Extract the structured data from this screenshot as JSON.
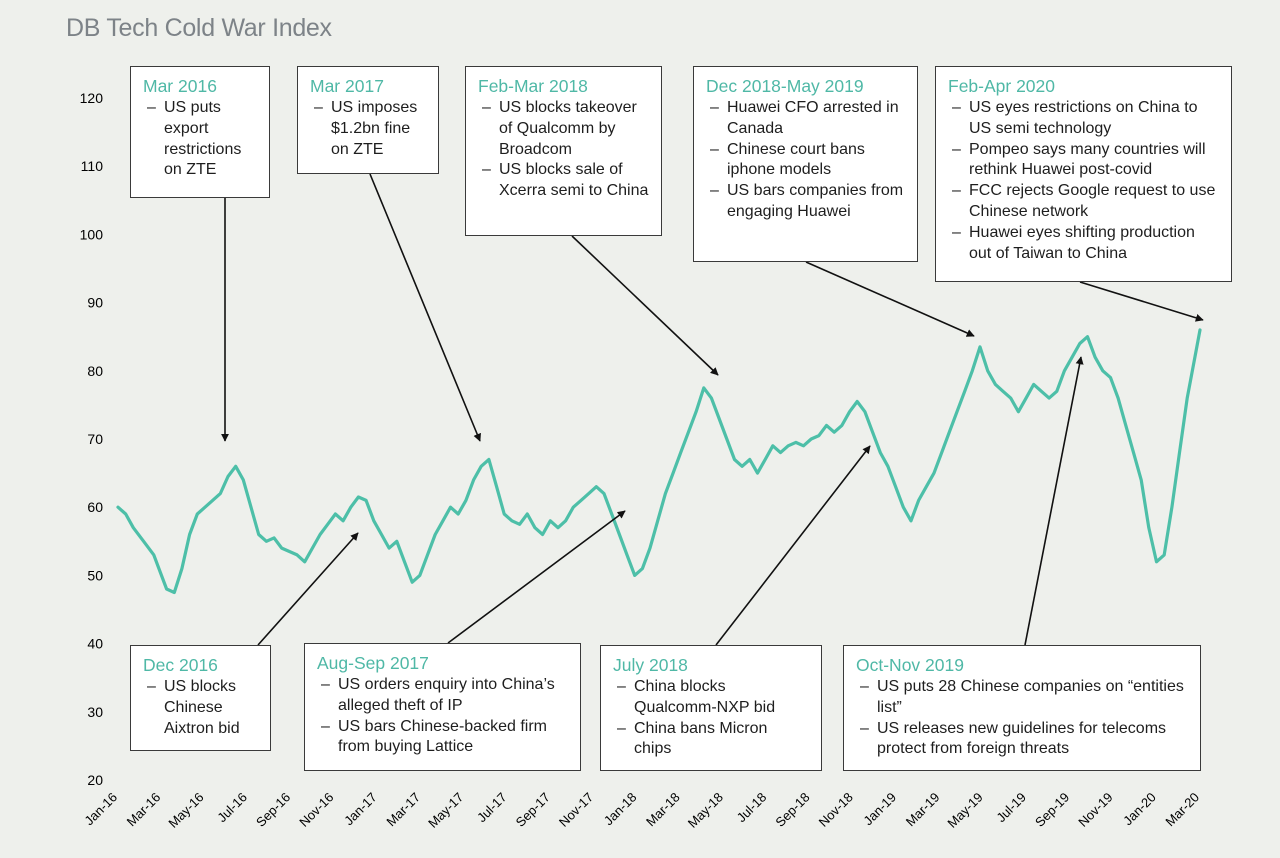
{
  "title": "DB Tech Cold War Index",
  "colors": {
    "line": "#4dbfa8",
    "accent": "#4fb8a6",
    "text": "#1e1e1e",
    "bg": "#eef0ec"
  },
  "chart_data": {
    "type": "line",
    "title": "DB Tech Cold War Index",
    "ylim": [
      20,
      120
    ],
    "yticks": [
      20,
      30,
      40,
      50,
      60,
      70,
      80,
      90,
      100,
      110,
      120
    ],
    "xticks": [
      "Jan-16",
      "Mar-16",
      "May-16",
      "Jul-16",
      "Sep-16",
      "Nov-16",
      "Jan-17",
      "Mar-17",
      "May-17",
      "Jul-17",
      "Sep-17",
      "Nov-17",
      "Jan-18",
      "Mar-18",
      "May-18",
      "Jul-18",
      "Sep-18",
      "Nov-18",
      "Jan-19",
      "Mar-19",
      "May-19",
      "Jul-19",
      "Sep-19",
      "Nov-19",
      "Jan-20",
      "Mar-20"
    ],
    "series": [
      {
        "name": "DB Tech Cold War Index",
        "points": [
          [
            0,
            60
          ],
          [
            0.3,
            59
          ],
          [
            0.6,
            57
          ],
          [
            1,
            55
          ],
          [
            1.4,
            53
          ],
          [
            1.6,
            51
          ],
          [
            1.9,
            48
          ],
          [
            2.2,
            47.5
          ],
          [
            2.5,
            51
          ],
          [
            2.8,
            56
          ],
          [
            3.1,
            59
          ],
          [
            3.4,
            60
          ],
          [
            3.7,
            61
          ],
          [
            4,
            62
          ],
          [
            4.3,
            64.5
          ],
          [
            4.6,
            66
          ],
          [
            4.9,
            64
          ],
          [
            5.2,
            60
          ],
          [
            5.5,
            56
          ],
          [
            5.8,
            55
          ],
          [
            6.1,
            55.5
          ],
          [
            6.4,
            54
          ],
          [
            6.7,
            53.5
          ],
          [
            7,
            53
          ],
          [
            7.3,
            52
          ],
          [
            7.6,
            54
          ],
          [
            7.9,
            56
          ],
          [
            8.2,
            57.5
          ],
          [
            8.5,
            59
          ],
          [
            8.8,
            58
          ],
          [
            9.1,
            60
          ],
          [
            9.4,
            61.5
          ],
          [
            9.7,
            61
          ],
          [
            10,
            58
          ],
          [
            10.3,
            56
          ],
          [
            10.6,
            54
          ],
          [
            10.9,
            55
          ],
          [
            11.2,
            52
          ],
          [
            11.5,
            49
          ],
          [
            11.8,
            50
          ],
          [
            12.1,
            53
          ],
          [
            12.4,
            56
          ],
          [
            12.7,
            58
          ],
          [
            13,
            60
          ],
          [
            13.3,
            59
          ],
          [
            13.6,
            61
          ],
          [
            13.9,
            64
          ],
          [
            14.2,
            66
          ],
          [
            14.5,
            67
          ],
          [
            14.8,
            63
          ],
          [
            15.1,
            59
          ],
          [
            15.4,
            58
          ],
          [
            15.7,
            57.5
          ],
          [
            16,
            59
          ],
          [
            16.3,
            57
          ],
          [
            16.6,
            56
          ],
          [
            16.9,
            58
          ],
          [
            17.2,
            57
          ],
          [
            17.5,
            58
          ],
          [
            17.8,
            60
          ],
          [
            18.1,
            61
          ],
          [
            18.4,
            62
          ],
          [
            18.7,
            63
          ],
          [
            19,
            62
          ],
          [
            19.3,
            59
          ],
          [
            19.6,
            56
          ],
          [
            19.9,
            53
          ],
          [
            20.2,
            50
          ],
          [
            20.5,
            51
          ],
          [
            20.8,
            54
          ],
          [
            21.1,
            58
          ],
          [
            21.4,
            62
          ],
          [
            21.7,
            65
          ],
          [
            22,
            68
          ],
          [
            22.3,
            71
          ],
          [
            22.6,
            74
          ],
          [
            22.9,
            77.5
          ],
          [
            23.2,
            76
          ],
          [
            23.5,
            73
          ],
          [
            23.8,
            70
          ],
          [
            24.1,
            67
          ],
          [
            24.4,
            66
          ],
          [
            24.7,
            67
          ],
          [
            25,
            65
          ],
          [
            25.3,
            67
          ],
          [
            25.6,
            69
          ],
          [
            25.9,
            68
          ],
          [
            26.2,
            69
          ],
          [
            26.5,
            69.5
          ],
          [
            26.8,
            69
          ],
          [
            27.1,
            70
          ],
          [
            27.4,
            70.5
          ],
          [
            27.7,
            72
          ],
          [
            28,
            71
          ],
          [
            28.3,
            72
          ],
          [
            28.6,
            74
          ],
          [
            28.9,
            75.5
          ],
          [
            29.2,
            74
          ],
          [
            29.5,
            71
          ],
          [
            29.8,
            68
          ],
          [
            30.1,
            66
          ],
          [
            30.4,
            63
          ],
          [
            30.7,
            60
          ],
          [
            31,
            58
          ],
          [
            31.3,
            61
          ],
          [
            31.6,
            63
          ],
          [
            31.9,
            65
          ],
          [
            32.2,
            68
          ],
          [
            32.5,
            71
          ],
          [
            32.8,
            74
          ],
          [
            33.1,
            77
          ],
          [
            33.4,
            80
          ],
          [
            33.7,
            83.5
          ],
          [
            34,
            80
          ],
          [
            34.3,
            78
          ],
          [
            34.6,
            77
          ],
          [
            34.9,
            76
          ],
          [
            35.2,
            74
          ],
          [
            35.5,
            76
          ],
          [
            35.8,
            78
          ],
          [
            36.1,
            77
          ],
          [
            36.4,
            76
          ],
          [
            36.7,
            77
          ],
          [
            37,
            80
          ],
          [
            37.3,
            82
          ],
          [
            37.6,
            84
          ],
          [
            37.9,
            85
          ],
          [
            38.2,
            82
          ],
          [
            38.5,
            80
          ],
          [
            38.8,
            79
          ],
          [
            39.1,
            76
          ],
          [
            39.4,
            72
          ],
          [
            39.7,
            68
          ],
          [
            40,
            64
          ],
          [
            40.3,
            57
          ],
          [
            40.6,
            52
          ],
          [
            40.9,
            53
          ],
          [
            41.2,
            60
          ],
          [
            41.5,
            68
          ],
          [
            41.8,
            76
          ],
          [
            42.1,
            82
          ],
          [
            42.3,
            86
          ]
        ]
      }
    ],
    "annotations": [
      {
        "id": "a1",
        "title": "Mar 2016",
        "items": [
          "US puts export restrictions on ZTE"
        ]
      },
      {
        "id": "a2",
        "title": "Mar 2017",
        "items": [
          "US imposes $1.2bn fine on ZTE"
        ]
      },
      {
        "id": "a3",
        "title": "Feb-Mar 2018",
        "items": [
          "US blocks takeover of Qualcomm by Broadcom",
          "US blocks sale of Xcerra semi to China"
        ]
      },
      {
        "id": "a4",
        "title": "Dec 2018-May 2019",
        "items": [
          "Huawei CFO arrested in Canada",
          "Chinese court bans iphone models",
          "US bars companies from engaging Huawei"
        ]
      },
      {
        "id": "a5",
        "title": "Feb-Apr 2020",
        "items": [
          "US eyes restrictions on China to US semi technology",
          "Pompeo says many countries will rethink Huawei post-covid",
          "FCC rejects Google request to use Chinese network",
          "Huawei eyes shifting production out of Taiwan to China"
        ]
      },
      {
        "id": "a6",
        "title": "Dec 2016",
        "items": [
          "US blocks Chinese Aixtron bid"
        ]
      },
      {
        "id": "a7",
        "title": "Aug-Sep 2017",
        "items": [
          "US orders enquiry into China’s alleged theft of IP",
          "US bars Chinese-backed firm from buying Lattice"
        ]
      },
      {
        "id": "a8",
        "title": "July 2018",
        "items": [
          "China blocks Qualcomm-NXP bid",
          "China bans Micron chips"
        ]
      },
      {
        "id": "a9",
        "title": "Oct-Nov 2019",
        "items": [
          "US puts 28 Chinese companies on “entities list”",
          "US releases new guidelines for telecoms protect from foreign threats"
        ]
      }
    ]
  }
}
